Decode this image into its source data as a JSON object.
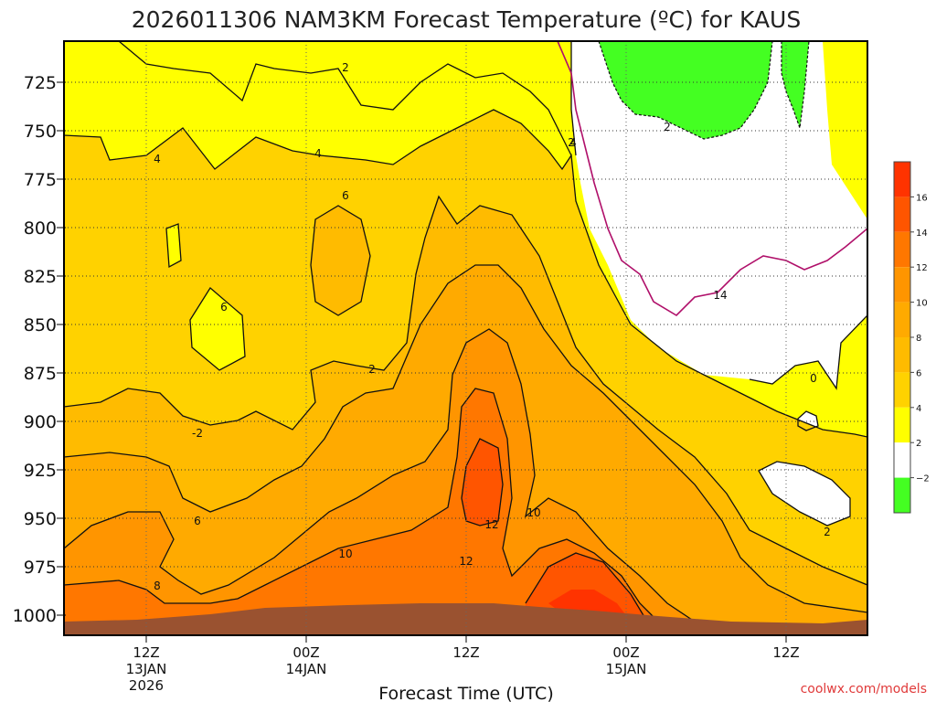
{
  "chart_data": {
    "type": "heatmap",
    "title": "2026011306 NAM3KM Forecast Temperature (ºC) for KAUS",
    "xlabel": "Forecast Time (UTC)",
    "ylabel": "",
    "y_ticks": [
      "725",
      "750",
      "775",
      "800",
      "825",
      "850",
      "875",
      "900",
      "925",
      "950",
      "975",
      "1000"
    ],
    "x_ticks": [
      {
        "line1": "12Z",
        "line2": "13JAN",
        "line3": "2026"
      },
      {
        "line1": "00Z",
        "line2": "14JAN",
        "line3": ""
      },
      {
        "line1": "12Z",
        "line2": "",
        "line3": ""
      },
      {
        "line1": "00Z",
        "line2": "15JAN",
        "line3": ""
      },
      {
        "line1": "12Z",
        "line2": "",
        "line3": ""
      }
    ],
    "colorbar": {
      "tick_labels": [
        "16",
        "14",
        "12",
        "10",
        "8",
        "6",
        "4",
        "2",
        "−2"
      ],
      "bins": [
        {
          "range": "16-18",
          "color": "#ff3300"
        },
        {
          "range": "14-16",
          "color": "#ff5500"
        },
        {
          "range": "12-14",
          "color": "#ff7700"
        },
        {
          "range": "10-12",
          "color": "#ff9500"
        },
        {
          "range": "8-10",
          "color": "#ffaa00"
        },
        {
          "range": "6-8",
          "color": "#ffbb00"
        },
        {
          "range": "4-6",
          "color": "#ffd200"
        },
        {
          "range": "2-4",
          "color": "#ffff00"
        },
        {
          "range": "-2-2",
          "color": "#ffffff"
        },
        {
          "range": "<-2",
          "color": "#44ff22"
        }
      ]
    },
    "contour_labels": [
      "2",
      "4",
      "4",
      "6",
      "6",
      "4",
      "2",
      "2",
      "-2",
      "6",
      "8",
      "10",
      "10",
      "12",
      "12",
      "14",
      "0",
      "2",
      "2"
    ],
    "terrain_color": "#9a5230",
    "grid": true
  },
  "watermark": "coolwx.com/models"
}
